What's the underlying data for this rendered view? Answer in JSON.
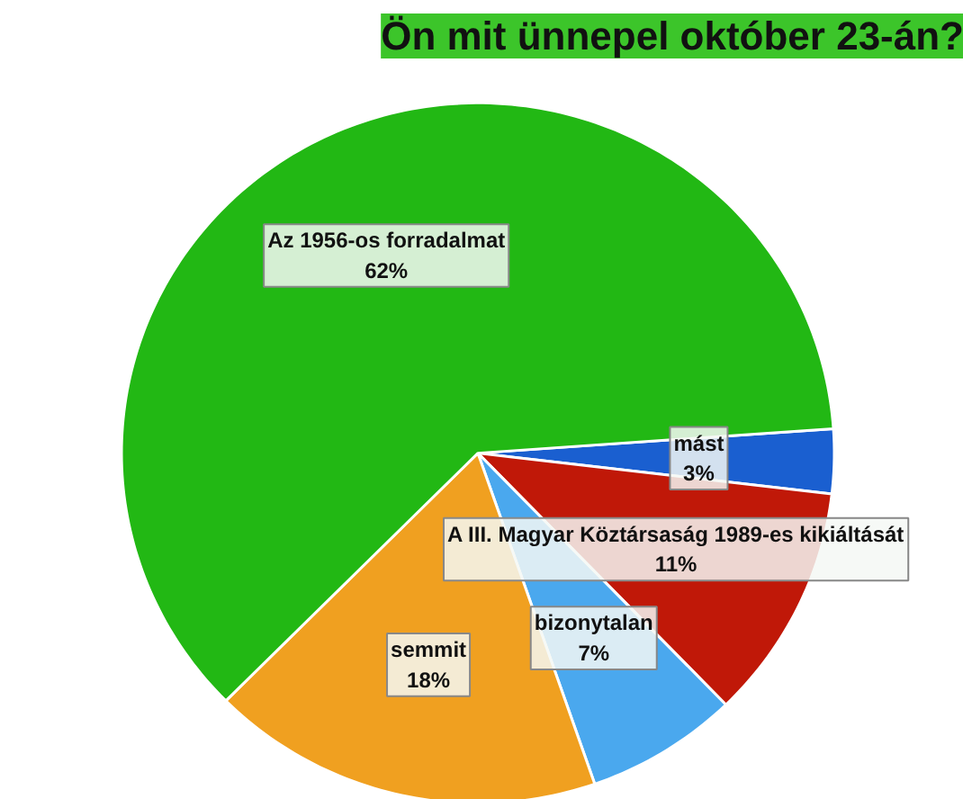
{
  "chart_data": {
    "type": "pie",
    "title": "Ön mit ünnepel október 23-án?",
    "categories": [
      "mást",
      "A III. Magyar Köztársaság 1989-es kikiáltását",
      "bizonytalan",
      "semmit",
      "Az 1956-os forradalmat"
    ],
    "values": [
      3,
      11,
      7,
      18,
      62
    ],
    "colors": [
      "#1a5fd0",
      "#c01808",
      "#4aa8ee",
      "#f0a020",
      "#22b814"
    ],
    "value_labels": [
      "3%",
      "11%",
      "7%",
      "18%",
      "62%"
    ]
  }
}
